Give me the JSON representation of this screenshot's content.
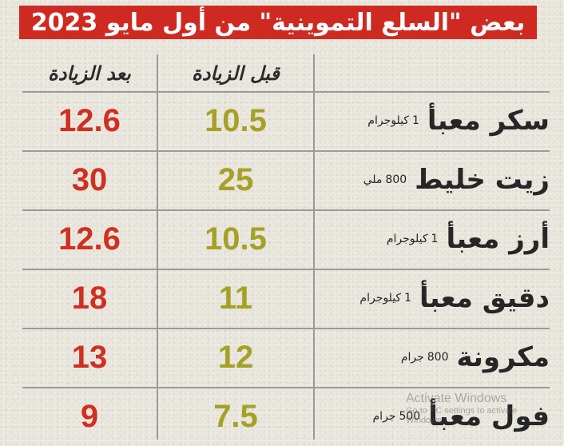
{
  "title": "بعض \"السلع التموينية\" من أول مايو 2023",
  "headers": {
    "before": "قبل الزيادة",
    "after": "بعد الزيادة"
  },
  "rows": [
    {
      "name": "سكر معبأ",
      "qty": "1",
      "unit": "كيلوجرام",
      "before": "10.5",
      "after": "12.6"
    },
    {
      "name": "زيت خليط",
      "qty": "800",
      "unit": "ملي",
      "before": "25",
      "after": "30"
    },
    {
      "name": "أرز معبأ",
      "qty": "1",
      "unit": "كيلوجرام",
      "before": "10.5",
      "after": "12.6"
    },
    {
      "name": "دقيق معبأ",
      "qty": "1",
      "unit": "كيلوجرام",
      "before": "11",
      "after": "18"
    },
    {
      "name": "مكرونة",
      "qty": "800",
      "unit": "جرام",
      "before": "12",
      "after": "13"
    },
    {
      "name": "فول معبأ",
      "qty": "500",
      "unit": "جرام",
      "before": "7.5",
      "after": "9"
    }
  ],
  "watermark": {
    "title": "Activate Windows",
    "subtitle": "Go to PC settings to activate Windows."
  },
  "colors": {
    "banner": "#cf2a22",
    "before_value": "#a6a126",
    "after_value": "#d0301f"
  }
}
